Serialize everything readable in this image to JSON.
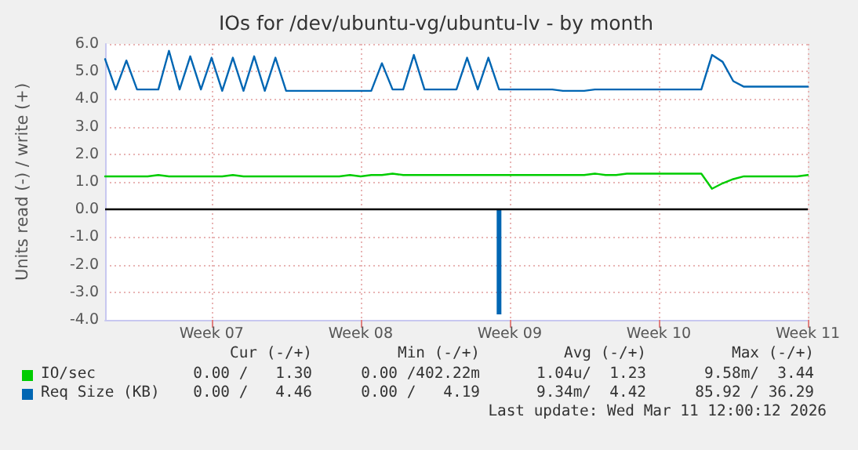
{
  "chart_data": {
    "type": "line",
    "title": "IOs for /dev/ubuntu-vg/ubuntu-lv - by month",
    "ylabel": "Units read (-) / write (+)",
    "categories": [
      null,
      null,
      null,
      null,
      null,
      null,
      null,
      null,
      null,
      null,
      "Week 07",
      null,
      null,
      null,
      null,
      null,
      null,
      null,
      null,
      null,
      null,
      null,
      null,
      null,
      "Week 08",
      null,
      null,
      null,
      null,
      null,
      null,
      null,
      null,
      null,
      null,
      null,
      null,
      null,
      "Week 09",
      null,
      null,
      null,
      null,
      null,
      null,
      null,
      null,
      null,
      null,
      null,
      null,
      null,
      "Week 10",
      null,
      null,
      null,
      null,
      null,
      null,
      null,
      null,
      null,
      null,
      null,
      null,
      null,
      "Week 11"
    ],
    "ylim": [
      -4,
      6
    ],
    "yticks": [
      {
        "value": -4,
        "label": "-4.0"
      },
      {
        "value": -3,
        "label": "-3.0"
      },
      {
        "value": -2,
        "label": "-2.0"
      },
      {
        "value": -1,
        "label": "-1.0"
      },
      {
        "value": 0,
        "label": "0.0"
      },
      {
        "value": 1,
        "label": "1.0"
      },
      {
        "value": 2,
        "label": "2.0"
      },
      {
        "value": 3,
        "label": "3.0"
      },
      {
        "value": 4,
        "label": "4.0"
      },
      {
        "value": 5,
        "label": "5.0"
      },
      {
        "value": 6,
        "label": "6.0"
      }
    ],
    "grid": true,
    "legend": "bottom left",
    "marker": "none",
    "line_style": "solid",
    "ref_lines": [
      {
        "axis": "y",
        "value": 0,
        "color": "#000000"
      }
    ],
    "series": [
      {
        "name": "IO/sec",
        "color": "#00cc00",
        "values": [
          1.2,
          1.2,
          1.2,
          1.2,
          1.2,
          1.25,
          1.2,
          1.2,
          1.2,
          1.2,
          1.2,
          1.2,
          1.25,
          1.2,
          1.2,
          1.2,
          1.2,
          1.2,
          1.2,
          1.2,
          1.2,
          1.2,
          1.2,
          1.25,
          1.2,
          1.25,
          1.25,
          1.3,
          1.25,
          1.25,
          1.25,
          1.25,
          1.25,
          1.25,
          1.25,
          1.25,
          1.25,
          1.25,
          1.25,
          1.25,
          1.25,
          1.25,
          1.25,
          1.25,
          1.25,
          1.25,
          1.3,
          1.25,
          1.25,
          1.3,
          1.3,
          1.3,
          1.3,
          1.3,
          1.3,
          1.3,
          1.3,
          0.75,
          0.95,
          1.1,
          1.2,
          1.2,
          1.2,
          1.2,
          1.2,
          1.2,
          1.25
        ]
      },
      {
        "name": "Req Size (KB)",
        "color": "#0066b3",
        "values": [
          5.45,
          4.35,
          5.4,
          4.35,
          4.35,
          4.35,
          5.75,
          4.35,
          5.55,
          4.35,
          5.5,
          4.3,
          5.5,
          4.3,
          5.55,
          4.3,
          5.5,
          4.3,
          4.3,
          4.3,
          4.3,
          4.3,
          4.3,
          4.3,
          4.3,
          4.3,
          5.3,
          4.35,
          4.35,
          5.6,
          4.35,
          4.35,
          4.35,
          4.35,
          5.5,
          4.35,
          5.5,
          4.35,
          4.35,
          4.35,
          4.35,
          4.35,
          4.35,
          4.3,
          4.3,
          4.3,
          4.35,
          4.35,
          4.35,
          4.35,
          4.35,
          4.35,
          4.35,
          4.35,
          4.35,
          4.35,
          4.35,
          5.6,
          5.35,
          4.65,
          4.45,
          4.45,
          4.45,
          4.45,
          4.45,
          4.45,
          4.45
        ]
      },
      {
        "type": "bar",
        "color": "#0066b3",
        "values": [
          null,
          null,
          null,
          null,
          null,
          null,
          null,
          null,
          null,
          null,
          null,
          null,
          null,
          null,
          null,
          null,
          null,
          null,
          null,
          null,
          null,
          null,
          null,
          null,
          null,
          null,
          null,
          null,
          null,
          null,
          null,
          null,
          null,
          null,
          null,
          null,
          null,
          -3.8,
          null,
          null,
          null,
          null,
          null,
          null,
          null,
          null,
          null,
          null,
          null,
          null,
          null,
          null,
          null,
          null,
          null,
          null,
          null,
          null,
          null,
          null,
          null,
          null,
          null,
          null,
          null,
          null,
          null
        ]
      }
    ],
    "annotations": [
      "Cur (-/+)",
      "Min (-/+)",
      "Avg (-/+)",
      "Max (-/+)",
      "0.00 /   1.30",
      "0.00 /402.22m",
      "1.04u/  1.23",
      "9.58m/  3.44",
      "0.00 /   4.46",
      "0.00 /   4.19",
      "9.34m/  4.42",
      "85.92 / 36.29",
      "Last update: Wed Mar 11 12:00:12 2026"
    ]
  }
}
